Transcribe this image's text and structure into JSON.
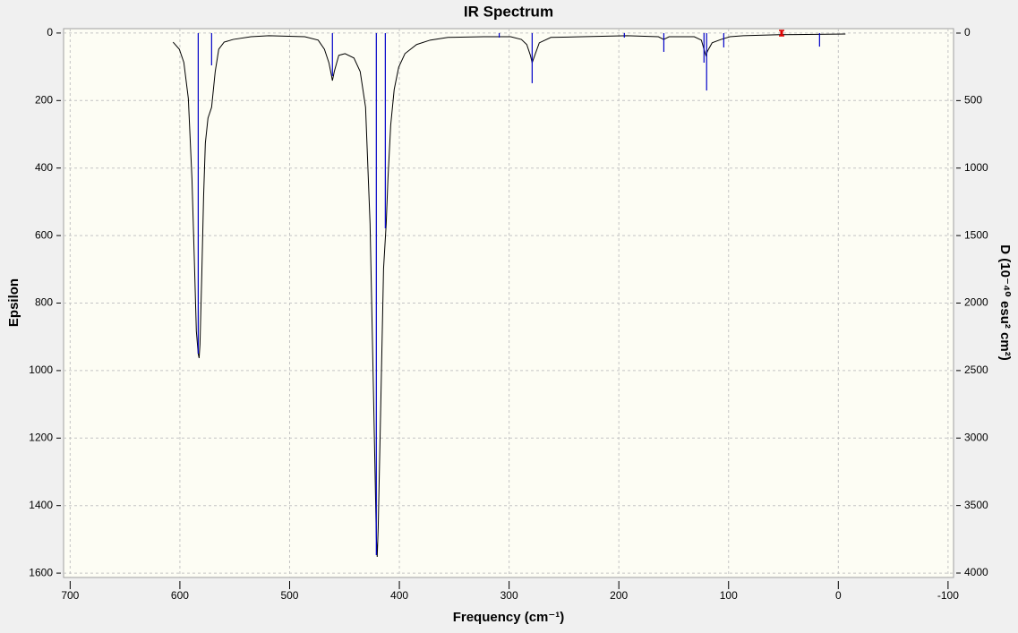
{
  "chart_data": {
    "type": "line",
    "title": "IR Spectrum",
    "x_label": "Frequency (cm⁻¹)",
    "y_label": "Epsilon",
    "y2_label": "D (10⁻⁴⁰ esu² cm²)",
    "xlim": [
      706,
      -105
    ],
    "xticks": [
      700,
      600,
      500,
      400,
      300,
      200,
      100,
      0,
      -100
    ],
    "ylim": [
      1613,
      -13
    ],
    "yticks": [
      0,
      200,
      400,
      600,
      800,
      1000,
      1200,
      1400,
      1600
    ],
    "y2lim": [
      4033,
      -33
    ],
    "y2ticks": [
      0,
      500,
      1000,
      1500,
      2000,
      2500,
      3000,
      3500,
      4000
    ],
    "grid": true,
    "series": [
      {
        "type": "line",
        "color": "#000000",
        "x": [
          606.2,
          600.5,
          596.4,
          592.3,
          589,
          586.6,
          585,
          583.3,
          582.5,
          581.7,
          580.1,
          578.4,
          576.8,
          574.4,
          571.1,
          567.8,
          564.6,
          559.7,
          551.5,
          535.2,
          518.9,
          486.2,
          474,
          468.3,
          464.2,
          461.8,
          461,
          459.3,
          455.2,
          449.5,
          441.4,
          435.7,
          430.8,
          426.7,
          423.4,
          421,
          420.2,
          419.3,
          416.9,
          414.4,
          412,
          410.4,
          407.9,
          404.7,
          400.6,
          394.9,
          384.3,
          372,
          355.7,
          323.1,
          298.6,
          288.8,
          283.9,
          280.6,
          279,
          276.6,
          272.5,
          261.9,
          233.3,
          192.5,
          164,
          159.1,
          154.2,
          131.3,
          124.8,
          122.4,
          120.7,
          119.1,
          115,
          106.9,
          98.7,
          86.5,
          53.8,
          -6.5
        ],
        "values": [
          27,
          48,
          87,
          194,
          432,
          698,
          883,
          950,
          963,
          923,
          724,
          485,
          326,
          252,
          220,
          114,
          48,
          27,
          19,
          11,
          8,
          11,
          21,
          48,
          88,
          127,
          141,
          114,
          66,
          61,
          74,
          114,
          220,
          565,
          1095,
          1493,
          1552,
          1467,
          1095,
          698,
          565,
          432,
          273,
          167,
          101,
          61,
          34,
          21,
          13,
          11,
          11,
          19,
          34,
          66,
          88,
          66,
          29,
          13,
          11,
          8,
          11,
          19,
          11,
          11,
          21,
          48,
          66,
          53,
          29,
          19,
          11,
          8,
          5,
          3
        ]
      },
      {
        "type": "stick",
        "axis": "y2",
        "color": "#0000c8",
        "x": [
          583.3,
          571.1,
          461,
          421,
          412.8,
          309,
          279,
          195,
          159,
          122.4,
          120,
          104.4,
          51.4,
          17.1
        ],
        "values": [
          2375,
          239,
          318,
          3867,
          1446,
          33,
          371,
          33,
          139,
          219,
          425,
          106,
          10,
          100
        ]
      }
    ]
  }
}
